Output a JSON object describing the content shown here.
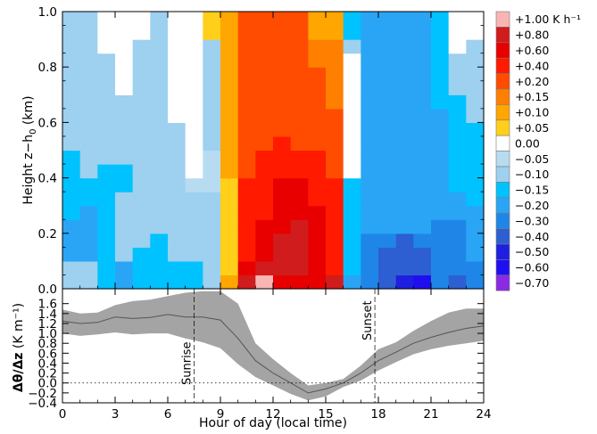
{
  "chart_data": [
    {
      "type": "heatmap",
      "ylabel": "Height z−h",
      "ylabel_sub": "0",
      "ylabel_unit": "(km)",
      "xlim": [
        0,
        24
      ],
      "ylim": [
        0,
        1
      ],
      "yticks": [
        0.0,
        0.2,
        0.4,
        0.6,
        0.8,
        1.0
      ],
      "ytick_labels": [
        "0.0",
        "0.2",
        "0.4",
        "0.6",
        "0.8",
        "1.0"
      ],
      "x_bins": 24,
      "y_levels": [
        0.025,
        0.075,
        0.125,
        0.175,
        0.225,
        0.275,
        0.325,
        0.375,
        0.425,
        0.475,
        0.525,
        0.575,
        0.625,
        0.675,
        0.725,
        0.775,
        0.825,
        0.875,
        0.925,
        0.975
      ],
      "legend": {
        "placement": "right",
        "labels": [
          "+1.00 K h⁻¹",
          "+0.80",
          "+0.60",
          "+0.40",
          "+0.20",
          "+0.15",
          "+0.10",
          "+0.05",
          "0.00",
          "−0.05",
          "−0.10",
          "−0.15",
          "−0.20",
          "−0.30",
          "−0.40",
          "−0.50",
          "−0.60",
          "−0.70"
        ],
        "colors": [
          "#f9b4b4",
          "#d01c1c",
          "#e80000",
          "#ff1a00",
          "#ff4c00",
          "#ff7f00",
          "#ffa600",
          "#ffcf1a",
          "#ffffff",
          "#b7dcf2",
          "#9ed0ef",
          "#00c2ff",
          "#2aa5f5",
          "#1f86e8",
          "#2d5fd2",
          "#1f1fe0",
          "#1f0ff0",
          "#8a2be2"
        ]
      },
      "values_note_levels": [
        "l0 bottom row ... l19 top row"
      ],
      "grid": [
        [
          10,
          10,
          11,
          12,
          11,
          11,
          11,
          11,
          10,
          6,
          1,
          0,
          2,
          2,
          2,
          1,
          12,
          13,
          14,
          15,
          16,
          13,
          14,
          13
        ],
        [
          10,
          10,
          11,
          12,
          11,
          11,
          11,
          11,
          10,
          7,
          2,
          1,
          1,
          1,
          2,
          3,
          11,
          13,
          14,
          14,
          14,
          13,
          13,
          13
        ],
        [
          12,
          12,
          11,
          10,
          11,
          11,
          10,
          10,
          10,
          7,
          3,
          2,
          1,
          1,
          2,
          3,
          11,
          13,
          14,
          14,
          14,
          13,
          13,
          12
        ],
        [
          12,
          12,
          11,
          10,
          10,
          11,
          10,
          10,
          10,
          7,
          3,
          2,
          1,
          1,
          2,
          3,
          11,
          13,
          13,
          14,
          13,
          13,
          13,
          12
        ],
        [
          12,
          12,
          11,
          10,
          10,
          10,
          10,
          10,
          10,
          7,
          3,
          2,
          2,
          1,
          2,
          3,
          11,
          12,
          12,
          12,
          12,
          13,
          13,
          12
        ],
        [
          11,
          12,
          11,
          10,
          10,
          10,
          10,
          10,
          10,
          7,
          3,
          3,
          2,
          2,
          2,
          3,
          11,
          12,
          12,
          12,
          12,
          12,
          12,
          12
        ],
        [
          11,
          11,
          11,
          10,
          10,
          10,
          10,
          10,
          10,
          7,
          3,
          3,
          2,
          2,
          3,
          3,
          11,
          12,
          12,
          12,
          12,
          12,
          12,
          11
        ],
        [
          11,
          11,
          11,
          11,
          10,
          10,
          10,
          9,
          9,
          7,
          3,
          3,
          2,
          2,
          3,
          3,
          11,
          12,
          12,
          12,
          12,
          12,
          11,
          11
        ],
        [
          11,
          10,
          11,
          11,
          10,
          10,
          10,
          8,
          9,
          6,
          4,
          3,
          3,
          3,
          3,
          4,
          8,
          12,
          12,
          12,
          12,
          12,
          11,
          11
        ],
        [
          11,
          10,
          10,
          10,
          10,
          10,
          10,
          8,
          9,
          6,
          4,
          3,
          3,
          3,
          3,
          4,
          8,
          12,
          12,
          12,
          12,
          12,
          11,
          11
        ],
        [
          10,
          10,
          10,
          10,
          10,
          10,
          10,
          8,
          10,
          6,
          4,
          4,
          3,
          4,
          4,
          4,
          8,
          12,
          12,
          12,
          12,
          12,
          11,
          11
        ],
        [
          10,
          10,
          10,
          10,
          10,
          10,
          10,
          8,
          10,
          6,
          4,
          4,
          4,
          4,
          4,
          4,
          8,
          12,
          12,
          12,
          12,
          12,
          11,
          11
        ],
        [
          10,
          10,
          10,
          10,
          10,
          10,
          8,
          8,
          10,
          6,
          4,
          4,
          4,
          4,
          4,
          4,
          8,
          12,
          12,
          12,
          12,
          12,
          11,
          10
        ],
        [
          10,
          10,
          10,
          10,
          10,
          10,
          8,
          8,
          10,
          6,
          4,
          4,
          4,
          4,
          4,
          5,
          8,
          12,
          12,
          12,
          12,
          11,
          11,
          10
        ],
        [
          10,
          10,
          10,
          8,
          10,
          10,
          8,
          8,
          10,
          6,
          4,
          4,
          4,
          4,
          4,
          5,
          8,
          12,
          12,
          12,
          12,
          11,
          10,
          10
        ],
        [
          10,
          10,
          10,
          8,
          10,
          10,
          8,
          8,
          10,
          6,
          4,
          4,
          4,
          4,
          4,
          5,
          8,
          12,
          12,
          12,
          12,
          11,
          10,
          10
        ],
        [
          10,
          10,
          10,
          8,
          10,
          10,
          8,
          8,
          10,
          6,
          4,
          4,
          4,
          4,
          5,
          5,
          8,
          12,
          12,
          12,
          12,
          11,
          10,
          10
        ],
        [
          10,
          10,
          8,
          8,
          10,
          10,
          8,
          8,
          10,
          6,
          4,
          4,
          4,
          4,
          5,
          5,
          10,
          12,
          12,
          12,
          12,
          11,
          8,
          10
        ],
        [
          10,
          10,
          8,
          8,
          8,
          10,
          8,
          8,
          7,
          6,
          4,
          4,
          4,
          4,
          6,
          6,
          11,
          12,
          12,
          12,
          12,
          11,
          8,
          8
        ],
        [
          10,
          10,
          8,
          8,
          8,
          10,
          8,
          8,
          7,
          6,
          4,
          4,
          4,
          4,
          6,
          6,
          11,
          12,
          12,
          12,
          12,
          11,
          8,
          8
        ]
      ]
    },
    {
      "type": "area",
      "ylabel": "Δθ/Δz",
      "ylabel_unit": "(K m⁻¹)",
      "xlabel": "Hour of day (local time)",
      "xlim": [
        0,
        24
      ],
      "ylim": [
        -0.4,
        1.9
      ],
      "xticks": [
        0,
        3,
        6,
        9,
        12,
        15,
        18,
        21,
        24
      ],
      "xtick_labels": [
        "0",
        "3",
        "6",
        "9",
        "12",
        "15",
        "18",
        "21",
        "24"
      ],
      "yticks": [
        -0.4,
        -0.2,
        0.0,
        0.2,
        0.4,
        0.6,
        0.8,
        1.0,
        1.2,
        1.4,
        1.6
      ],
      "ytick_labels": [
        "−0.4",
        "−0.2",
        "0.0",
        "0.2",
        "0.4",
        "0.6",
        "0.8",
        "1.0",
        "1.2",
        "1.4",
        "1.6"
      ],
      "zero_line": 0.0,
      "series": [
        {
          "x": [
            0,
            1,
            2,
            3,
            4,
            5,
            6,
            7,
            8,
            9,
            10,
            11,
            12,
            13,
            14,
            15,
            16,
            17,
            18,
            19,
            20,
            21,
            22,
            23,
            24
          ],
          "mean": [
            1.25,
            1.2,
            1.22,
            1.33,
            1.3,
            1.32,
            1.38,
            1.33,
            1.33,
            1.27,
            0.9,
            0.45,
            0.2,
            0.0,
            -0.2,
            -0.12,
            0.0,
            0.2,
            0.45,
            0.62,
            0.8,
            0.92,
            1.02,
            1.1,
            1.15
          ],
          "upper": [
            1.48,
            1.4,
            1.42,
            1.57,
            1.65,
            1.68,
            1.75,
            1.82,
            1.85,
            1.85,
            1.6,
            0.8,
            0.48,
            0.2,
            -0.05,
            0.0,
            0.08,
            0.35,
            0.68,
            0.82,
            1.05,
            1.25,
            1.42,
            1.5,
            1.5
          ],
          "lower": [
            1.0,
            0.95,
            0.98,
            1.02,
            0.98,
            1.0,
            1.0,
            0.9,
            0.82,
            0.7,
            0.38,
            0.12,
            -0.05,
            -0.22,
            -0.35,
            -0.27,
            -0.08,
            0.05,
            0.25,
            0.42,
            0.58,
            0.68,
            0.75,
            0.8,
            0.85
          ]
        }
      ],
      "annotations": [
        {
          "label": "Sunrise",
          "x": 7.5
        },
        {
          "label": "Sunset",
          "x": 17.8
        }
      ]
    }
  ]
}
